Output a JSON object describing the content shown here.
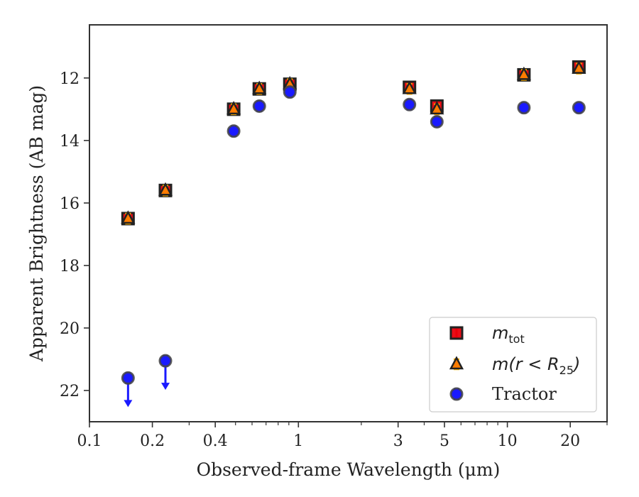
{
  "chart_data": {
    "type": "scatter",
    "title": "",
    "xlabel": "Observed-frame Wavelength (μm)",
    "ylabel": "Apparent Brightness (AB mag)",
    "x_scale": "log",
    "y_inverted": true,
    "xlim": [
      0.1,
      30
    ],
    "ylim": [
      23.0,
      10.3
    ],
    "x_ticks": [
      {
        "value": 0.1,
        "label": "0.1"
      },
      {
        "value": 0.2,
        "label": "0.2"
      },
      {
        "value": 0.4,
        "label": "0.4"
      },
      {
        "value": 1,
        "label": "1"
      },
      {
        "value": 3,
        "label": "3"
      },
      {
        "value": 5,
        "label": "5"
      },
      {
        "value": 10,
        "label": "10"
      },
      {
        "value": 20,
        "label": "20"
      }
    ],
    "y_ticks": [
      {
        "value": 12,
        "label": "12"
      },
      {
        "value": 14,
        "label": "14"
      },
      {
        "value": 16,
        "label": "16"
      },
      {
        "value": 18,
        "label": "18"
      },
      {
        "value": 20,
        "label": "20"
      },
      {
        "value": 22,
        "label": "22"
      }
    ],
    "grid": false,
    "legend_position": "bottom-right",
    "series": [
      {
        "name": "m_tot",
        "marker": "square",
        "color": "#e8000b",
        "errorbar_color": "#e8000b",
        "x": [
          0.153,
          0.231,
          0.49,
          0.65,
          0.91,
          3.4,
          4.6,
          12,
          22
        ],
        "y": [
          16.5,
          15.6,
          13.0,
          12.35,
          12.2,
          12.3,
          12.9,
          11.9,
          11.65
        ],
        "upper_limit": [
          false,
          false,
          false,
          false,
          false,
          false,
          false,
          false,
          false
        ]
      },
      {
        "name": "m(r<R_25)",
        "marker": "triangle",
        "color": "#ff7c00",
        "errorbar_color": "#ffb000",
        "x": [
          0.153,
          0.231,
          0.49,
          0.65,
          0.91,
          3.4,
          4.6,
          12,
          22
        ],
        "y": [
          16.5,
          15.6,
          13.0,
          12.35,
          12.2,
          12.35,
          13.0,
          11.9,
          11.7
        ],
        "upper_limit": [
          false,
          false,
          false,
          false,
          false,
          false,
          false,
          false,
          false
        ]
      },
      {
        "name": "Tractor",
        "marker": "circle",
        "color": "#1a1aff",
        "errorbar_color": "#1a1aff",
        "x": [
          0.153,
          0.231,
          0.49,
          0.65,
          0.91,
          3.4,
          4.6,
          12,
          22
        ],
        "y": [
          21.6,
          21.05,
          13.7,
          12.9,
          12.45,
          12.85,
          13.4,
          12.95,
          12.95
        ],
        "upper_limit": [
          true,
          true,
          false,
          false,
          false,
          false,
          false,
          false,
          false
        ]
      }
    ],
    "legend": {
      "entries": [
        {
          "series": "m_tot",
          "math_main": "m",
          "math_sub": "tot",
          "math_tail": "",
          "text": ""
        },
        {
          "series": "m(r<R_25)",
          "math_main": "m(r < R",
          "math_sub": "25",
          "math_tail": ")",
          "text": ""
        },
        {
          "series": "Tractor",
          "math_main": "",
          "math_sub": "",
          "math_tail": "",
          "text": "Tractor"
        }
      ]
    }
  }
}
